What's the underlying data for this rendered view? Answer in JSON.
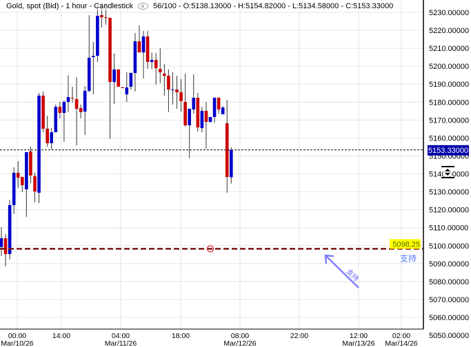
{
  "header": {
    "symbol": "Gold, spot (Bid)",
    "interval": "1 hour",
    "chart_type": "Candlestick",
    "visibility_icon": "eye-icon",
    "bar_count": "56/100",
    "ohlc_text": "O:5138.13000 - H:5154.82000 - L:5134.58000 - C:5153.33000"
  },
  "colors": {
    "up": "#0000cc",
    "down": "#cc0000",
    "wick": "#333333",
    "support_line": "#7a1414",
    "annotation": "#7b7bff",
    "price_label_bg": "#0000aa",
    "highlight": "#ffff00"
  },
  "chart_data": {
    "type": "candlestick",
    "ylim": [
      5050,
      5230
    ],
    "yticks": [
      "5230.00000",
      "5220.00000",
      "5210.00000",
      "5200.00000",
      "5190.00000",
      "5180.00000",
      "5170.00000",
      "5160.00000",
      "5150.00000",
      "5140.00000",
      "5130.00000",
      "5120.00000",
      "5110.00000",
      "5100.00000",
      "5090.00000",
      "5080.00000",
      "5070.00000",
      "5060.00000",
      "5050.00000"
    ],
    "xticks": [
      {
        "time": "00:00",
        "date": "Mar/10/26"
      },
      {
        "time": "14:00",
        "date": ""
      },
      {
        "time": "04:00",
        "date": "Mar/11/26"
      },
      {
        "time": "18:00",
        "date": ""
      },
      {
        "time": "08:00",
        "date": "Mar/12/26"
      },
      {
        "time": "22:00",
        "date": ""
      },
      {
        "time": "12:00",
        "date": "Mar/13/26"
      },
      {
        "time": "02:00",
        "date": "Mar/14/26"
      }
    ],
    "grid": true,
    "candles": [
      [
        5099.2,
        5110.3,
        5094.2,
        5104.1
      ],
      [
        5104.1,
        5106.4,
        5088.4,
        5095.3
      ],
      [
        5095.3,
        5125.6,
        5092.2,
        5122.6
      ],
      [
        5122.6,
        5143.7,
        5117.6,
        5140.6
      ],
      [
        5140.6,
        5147.1,
        5132.2,
        5137.9
      ],
      [
        5138.3,
        5138.3,
        5129.9,
        5133.7
      ],
      [
        5131.4,
        5152.1,
        5116.0,
        5152.1
      ],
      [
        5152.5,
        5155.2,
        5134.8,
        5139.1
      ],
      [
        5138.7,
        5140.6,
        5124.1,
        5130.2
      ],
      [
        5129.5,
        5185.1,
        5123.7,
        5183.6
      ],
      [
        5183.6,
        5185.9,
        5163.2,
        5165.2
      ],
      [
        5165.2,
        5172.4,
        5155.2,
        5157.1
      ],
      [
        5157.1,
        5165.5,
        5153.6,
        5163.2
      ],
      [
        5163.2,
        5178.6,
        5163.2,
        5177.4
      ],
      [
        5177.4,
        5180.1,
        5170.9,
        5174.0
      ],
      [
        5174.0,
        5180.9,
        5157.9,
        5180.1
      ],
      [
        5180.1,
        5195.0,
        5174.4,
        5182.8
      ],
      [
        5182.4,
        5188.6,
        5179.7,
        5182.0
      ],
      [
        5181.7,
        5193.9,
        5155.9,
        5176.3
      ],
      [
        5176.7,
        5178.6,
        5170.9,
        5174.4
      ],
      [
        5174.7,
        5188.9,
        5161.7,
        5186.3
      ],
      [
        5186.3,
        5228.5,
        5185.5,
        5204.7
      ],
      [
        5205.1,
        5213.5,
        5184.3,
        5205.8
      ],
      [
        5205.8,
        5233.8,
        5202.4,
        5228.1
      ],
      [
        5228.5,
        5235.0,
        5221.6,
        5227.3
      ],
      [
        5227.3,
        5235.0,
        5223.1,
        5226.9
      ],
      [
        5226.9,
        5227.3,
        5159.4,
        5191.2
      ],
      [
        5191.2,
        5207.0,
        5179.0,
        5198.2
      ],
      [
        5198.2,
        5198.2,
        5188.6,
        5188.6
      ],
      [
        5188.2,
        5188.6,
        5187.8,
        5188.0
      ],
      [
        5184.3,
        5196.6,
        5180.1,
        5188.2
      ],
      [
        5188.6,
        5196.6,
        5187.0,
        5196.2
      ],
      [
        5196.2,
        5218.5,
        5185.9,
        5213.9
      ],
      [
        5213.9,
        5222.7,
        5207.7,
        5207.7
      ],
      [
        5207.7,
        5219.6,
        5193.2,
        5216.6
      ],
      [
        5216.6,
        5219.6,
        5198.5,
        5202.4
      ],
      [
        5202.4,
        5207.7,
        5198.5,
        5203.5
      ],
      [
        5203.5,
        5207.4,
        5189.7,
        5198.9
      ],
      [
        5198.5,
        5210.0,
        5190.5,
        5196.6
      ],
      [
        5195.9,
        5201.2,
        5183.6,
        5194.7
      ],
      [
        5194.7,
        5198.2,
        5174.4,
        5187.0
      ],
      [
        5186.9,
        5196.6,
        5178.6,
        5187.0
      ],
      [
        5187.0,
        5194.7,
        5176.3,
        5185.5
      ],
      [
        5185.5,
        5192.8,
        5174.7,
        5180.5
      ],
      [
        5180.1,
        5195.9,
        5166.3,
        5167.1
      ],
      [
        5167.1,
        5176.3,
        5148.7,
        5176.3
      ],
      [
        5175.9,
        5195.5,
        5173.6,
        5182.4
      ],
      [
        5182.4,
        5185.1,
        5163.6,
        5165.9
      ],
      [
        5165.5,
        5177.4,
        5163.2,
        5175.1
      ],
      [
        5175.1,
        5180.1,
        5154.0,
        5169.0
      ],
      [
        5169.0,
        5171.7,
        5168.6,
        5171.7
      ],
      [
        5171.7,
        5182.8,
        5168.6,
        5182.4
      ],
      [
        5182.4,
        5182.8,
        5173.6,
        5175.9
      ],
      [
        5173.2,
        5177.8,
        5173.2,
        5177.0
      ],
      [
        5168.2,
        5181.3,
        5129.5,
        5138.3
      ],
      [
        5138.13,
        5154.82,
        5134.58,
        5153.33
      ]
    ],
    "current_price": {
      "value": 5153.33,
      "label": "5153.33000"
    },
    "support": {
      "value": 5098.25,
      "label": "5098.25",
      "text": "支持"
    },
    "arrow_annotation": {
      "text": "支持"
    }
  }
}
